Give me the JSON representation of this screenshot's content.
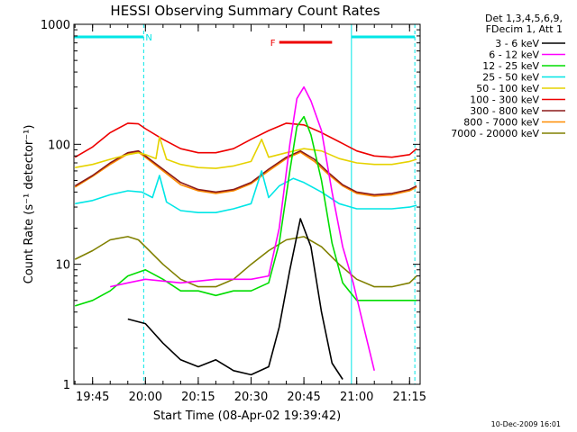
{
  "chart_data": {
    "type": "line",
    "title": "HESSI Observing Summary Count Rates",
    "xlabel": "Start Time (08-Apr-02 19:39:42)",
    "ylabel": "Count Rate (s⁻¹ detector⁻¹)",
    "yscale": "log",
    "ylim": [
      1,
      1000
    ],
    "xlim": [
      "19:39:42",
      "21:18:00"
    ],
    "xticks": [
      "19:45",
      "20:00",
      "20:15",
      "20:30",
      "20:45",
      "21:00",
      "21:15"
    ],
    "yticks": [
      "1",
      "10",
      "100",
      "1000"
    ],
    "grid": false,
    "legend_header": [
      "Det 1,3,4,5,6,9,",
      "FDecim 1, Att 1"
    ],
    "legend_position": "right",
    "series": [
      {
        "name": "3 - 6 keV",
        "color": "#000000",
        "x": [
          "19:55",
          "20:00",
          "20:05",
          "20:10",
          "20:15",
          "20:20",
          "20:25",
          "20:30",
          "20:35",
          "20:38",
          "20:41",
          "20:44",
          "20:47",
          "20:50",
          "20:53",
          "20:56"
        ],
        "y": [
          3.5,
          3.2,
          2.2,
          1.6,
          1.4,
          1.6,
          1.3,
          1.2,
          1.4,
          3,
          9,
          24,
          14,
          4,
          1.5,
          1.1
        ]
      },
      {
        "name": "6 - 12 keV",
        "color": "#ff00ff",
        "x": [
          "19:50",
          "19:55",
          "20:00",
          "20:10",
          "20:20",
          "20:30",
          "20:35",
          "20:38",
          "20:41",
          "20:43",
          "20:45",
          "20:47",
          "20:50",
          "20:53",
          "20:56",
          "20:59",
          "21:02",
          "21:05"
        ],
        "y": [
          6.5,
          7,
          7.5,
          7,
          7.5,
          7.5,
          8,
          20,
          100,
          240,
          300,
          230,
          130,
          40,
          14,
          7,
          3,
          1.3
        ]
      },
      {
        "name": "12 - 25 keV",
        "color": "#00dd00",
        "x": [
          "19:40",
          "19:45",
          "19:50",
          "19:55",
          "20:00",
          "20:05",
          "20:10",
          "20:15",
          "20:20",
          "20:25",
          "20:30",
          "20:35",
          "20:38",
          "20:41",
          "20:43",
          "20:45",
          "20:47",
          "20:50",
          "20:53",
          "20:56",
          "21:00",
          "21:05",
          "21:10",
          "21:15",
          "21:17"
        ],
        "y": [
          4.5,
          5,
          6,
          8,
          9,
          7.5,
          6,
          6,
          5.5,
          6,
          6,
          7,
          15,
          60,
          140,
          170,
          120,
          50,
          15,
          7,
          5,
          5,
          5,
          5,
          5
        ]
      },
      {
        "name": "25 - 50 keV",
        "color": "#00e6e6",
        "x": [
          "19:40",
          "19:45",
          "19:50",
          "19:55",
          "19:59",
          "20:02",
          "20:04",
          "20:06",
          "20:10",
          "20:15",
          "20:20",
          "20:25",
          "20:30",
          "20:33",
          "20:35",
          "20:38",
          "20:42",
          "20:45",
          "20:50",
          "20:55",
          "21:00",
          "21:05",
          "21:10",
          "21:15",
          "21:17"
        ],
        "y": [
          32,
          34,
          38,
          41,
          40,
          36,
          55,
          33,
          28,
          27,
          27,
          29,
          32,
          60,
          36,
          45,
          52,
          48,
          40,
          32,
          29,
          29,
          29,
          30,
          31
        ]
      },
      {
        "name": "50 - 100 keV",
        "color": "#e6d200",
        "x": [
          "19:40",
          "19:45",
          "19:50",
          "19:55",
          "19:58",
          "20:00",
          "20:03",
          "20:04",
          "20:06",
          "20:10",
          "20:15",
          "20:20",
          "20:25",
          "20:30",
          "20:33",
          "20:35",
          "20:40",
          "20:45",
          "20:50",
          "20:55",
          "21:00",
          "21:05",
          "21:10",
          "21:15",
          "21:17"
        ],
        "y": [
          64,
          68,
          75,
          82,
          85,
          82,
          76,
          115,
          75,
          68,
          64,
          63,
          66,
          72,
          110,
          78,
          85,
          92,
          88,
          76,
          70,
          68,
          68,
          72,
          75
        ]
      },
      {
        "name": "100 - 300 keV",
        "color": "#ee0000",
        "x": [
          "19:40",
          "19:45",
          "19:50",
          "19:55",
          "19:58",
          "20:00",
          "20:05",
          "20:10",
          "20:15",
          "20:20",
          "20:25",
          "20:30",
          "20:35",
          "20:40",
          "20:45",
          "20:50",
          "20:55",
          "21:00",
          "21:05",
          "21:10",
          "21:15",
          "21:17"
        ],
        "y": [
          78,
          95,
          125,
          150,
          148,
          135,
          110,
          92,
          85,
          85,
          92,
          110,
          130,
          150,
          145,
          125,
          105,
          88,
          80,
          78,
          82,
          92
        ]
      },
      {
        "name": "300 - 800 keV",
        "color": "#8b1a1a",
        "x": [
          "19:40",
          "19:45",
          "19:50",
          "19:55",
          "19:58",
          "20:00",
          "20:05",
          "20:10",
          "20:15",
          "20:20",
          "20:25",
          "20:30",
          "20:35",
          "20:40",
          "20:44",
          "20:48",
          "20:52",
          "20:56",
          "21:00",
          "21:05",
          "21:10",
          "21:15",
          "21:17"
        ],
        "y": [
          45,
          55,
          70,
          85,
          88,
          80,
          62,
          48,
          42,
          40,
          42,
          48,
          62,
          78,
          88,
          75,
          58,
          46,
          40,
          38,
          39,
          42,
          45
        ]
      },
      {
        "name": "800 - 7000 keV",
        "color": "#ff8c00",
        "x": [
          "19:40",
          "19:45",
          "19:50",
          "19:55",
          "19:58",
          "20:00",
          "20:05",
          "20:10",
          "20:15",
          "20:20",
          "20:25",
          "20:30",
          "20:35",
          "20:40",
          "20:44",
          "20:48",
          "20:52",
          "20:56",
          "21:00",
          "21:05",
          "21:10",
          "21:15",
          "21:17"
        ],
        "y": [
          44,
          54,
          68,
          83,
          86,
          78,
          60,
          46,
          41,
          39,
          41,
          47,
          60,
          76,
          86,
          72,
          56,
          45,
          39,
          37,
          38,
          41,
          44
        ]
      },
      {
        "name": "7000 - 20000 keV",
        "color": "#808000",
        "x": [
          "19:40",
          "19:45",
          "19:50",
          "19:55",
          "19:58",
          "20:00",
          "20:05",
          "20:10",
          "20:15",
          "20:20",
          "20:25",
          "20:30",
          "20:35",
          "20:40",
          "20:45",
          "20:50",
          "20:55",
          "21:00",
          "21:05",
          "21:10",
          "21:15",
          "21:17"
        ],
        "y": [
          11,
          13,
          16,
          17,
          16,
          14,
          10,
          7.5,
          6.5,
          6.5,
          7.5,
          10,
          13,
          16,
          17,
          14,
          10,
          7.5,
          6.5,
          6.5,
          7,
          8
        ]
      }
    ],
    "annotations": [
      {
        "label": "N",
        "type": "night-bar",
        "color": "#00e6e6",
        "start": "19:39:42",
        "end": "19:59:30"
      },
      {
        "label": "",
        "type": "night-bar",
        "color": "#00e6e6",
        "start": "20:58:30",
        "end": "21:16:30"
      },
      {
        "label": "F",
        "type": "flare-bar",
        "color": "#ee0000",
        "start": "20:38",
        "end": "20:53"
      },
      {
        "type": "vline-dashed",
        "color": "#00e6e6",
        "at": "19:59:30"
      },
      {
        "type": "vline-solid",
        "color": "#00e6e6",
        "at": "20:58:30"
      },
      {
        "type": "vline-dashed",
        "color": "#00e6e6",
        "at": "21:16:30"
      }
    ]
  },
  "footer": {
    "date_stamp": "10-Dec-2009 16:01"
  }
}
